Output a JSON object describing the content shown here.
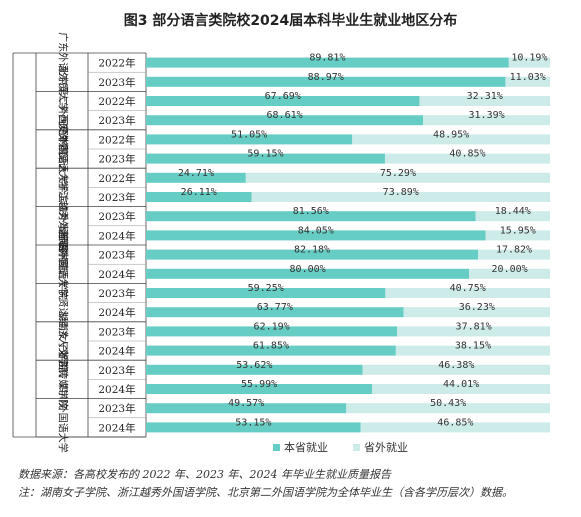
{
  "chart_data": {
    "type": "bar",
    "stacked": true,
    "orientation": "horizontal",
    "title": "图3  部分语言类院校2024届本科毕业生就业地区分布",
    "xlim": [
      0,
      100
    ],
    "legend_position": "bottom",
    "series_names": [
      "本省就业",
      "省外就业"
    ],
    "colors": {
      "in_province": "#66cdc4",
      "out_province": "#cdebe8"
    },
    "schools": [
      {
        "name": "广东外语外贸大学",
        "years": [
          "2022年",
          "2023年"
        ],
        "in": [
          89.81,
          88.97
        ],
        "out": [
          10.19,
          11.03
        ],
        "in_labels": [
          "89.81%",
          "88.97%"
        ],
        "out_labels": [
          "10.19%",
          "11.03%"
        ]
      },
      {
        "name": "北京第二外国语学院",
        "years": [
          "2022年",
          "2023年"
        ],
        "in": [
          67.69,
          68.61
        ],
        "out": [
          32.31,
          31.39
        ],
        "in_labels": [
          "67.69%",
          "68.61%"
        ],
        "out_labels": [
          "32.31%",
          "31.39%"
        ]
      },
      {
        "name": "西安外国语大学",
        "years": [
          "2022年",
          "2023年"
        ],
        "in": [
          51.05,
          59.15
        ],
        "out": [
          48.95,
          40.85
        ],
        "in_labels": [
          "51.05%",
          "59.15%"
        ],
        "out_labels": [
          "48.95%",
          "40.85%"
        ]
      },
      {
        "name": "天津外国语大学滨海外事学院",
        "years": [
          "2022年",
          "2023年"
        ],
        "in": [
          24.71,
          26.11
        ],
        "out": [
          75.29,
          73.89
        ],
        "in_labels": [
          "24.71%",
          "26.11%"
        ],
        "out_labels": [
          "75.29%",
          "73.89%"
        ]
      },
      {
        "name": "浙江越秀外国语学院",
        "years": [
          "2023年",
          "2024年"
        ],
        "in": [
          81.56,
          84.05
        ],
        "out": [
          18.44,
          15.95
        ],
        "in_labels": [
          "81.56%",
          "84.05%"
        ],
        "out_labels": [
          "18.44%",
          "15.95%"
        ]
      },
      {
        "name": "浙江外国语学院",
        "years": [
          "2023年",
          "2024年"
        ],
        "in": [
          82.18,
          80.0
        ],
        "out": [
          17.82,
          20.0
        ],
        "in_labels": [
          "82.18%",
          "80.00%"
        ],
        "out_labels": [
          "17.82%",
          "20.00%"
        ]
      },
      {
        "name": "上海外国语大学贤达经济人文学院",
        "years": [
          "2023年",
          "2024年"
        ],
        "in": [
          59.25,
          63.77
        ],
        "out": [
          40.75,
          36.23
        ],
        "in_labels": [
          "59.25%",
          "63.77%"
        ],
        "out_labels": [
          "40.75%",
          "36.23%"
        ]
      },
      {
        "name": "湖南女子学院",
        "years": [
          "2023年",
          "2024年"
        ],
        "in": [
          62.19,
          61.85
        ],
        "out": [
          37.81,
          38.15
        ],
        "in_labels": [
          "62.19%",
          "61.85%"
        ],
        "out_labels": [
          "37.81%",
          "38.15%"
        ]
      },
      {
        "name": "浙江传媒学院",
        "years": [
          "2023年",
          "2024年"
        ],
        "in": [
          53.62,
          55.99
        ],
        "out": [
          46.38,
          44.01
        ],
        "in_labels": [
          "53.62%",
          "55.99%"
        ],
        "out_labels": [
          "46.38%",
          "44.01%"
        ]
      },
      {
        "name": "四川外国语大学",
        "years": [
          "2023年",
          "2024年"
        ],
        "in": [
          49.57,
          53.15
        ],
        "out": [
          50.43,
          46.85
        ],
        "in_labels": [
          "49.57%",
          "53.15%"
        ],
        "out_labels": [
          "50.43%",
          "46.85%"
        ]
      }
    ]
  },
  "footnotes": {
    "source": "数据来源：各高校发布的 2022 年、2023 年、2024 年毕业生就业质量报告",
    "remark": "注：湖南女子学院、浙江越秀外国语学院、北京第二外国语学院为全体毕业生（含各学历层次）数据。"
  }
}
